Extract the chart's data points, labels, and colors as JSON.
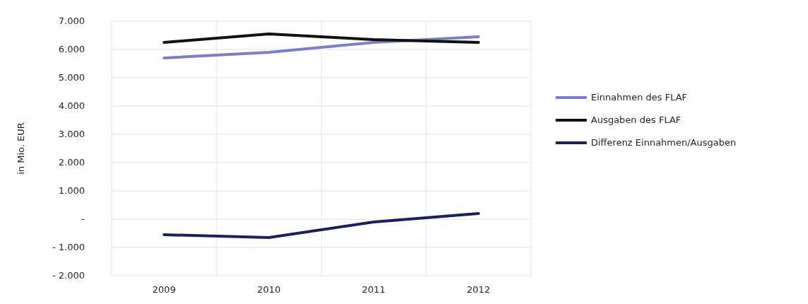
{
  "chart_data": {
    "type": "line",
    "ylabel": "in Mio. EUR",
    "categories": [
      "2009",
      "2010",
      "2011",
      "2012"
    ],
    "series": [
      {
        "name": "Einnahmen des FLAF",
        "color": "#7b7fc4",
        "values": [
          5700,
          5900,
          6250,
          6450
        ]
      },
      {
        "name": "Ausgaben des FLAF",
        "color": "#111111",
        "values": [
          6250,
          6550,
          6350,
          6250
        ]
      },
      {
        "name": "Differenz Einnahmen/Ausgaben",
        "color": "#1c1f5e",
        "values": [
          -550,
          -650,
          -100,
          200
        ]
      }
    ],
    "ylim": [
      -2000,
      7000
    ],
    "yticks": [
      {
        "value": -2000,
        "label": "- 2.000"
      },
      {
        "value": -1000,
        "label": "- 1.000"
      },
      {
        "value": 0,
        "label": "-"
      },
      {
        "value": 1000,
        "label": "1.000"
      },
      {
        "value": 2000,
        "label": "2.000"
      },
      {
        "value": 3000,
        "label": "3.000"
      },
      {
        "value": 4000,
        "label": "4.000"
      },
      {
        "value": 5000,
        "label": "5.000"
      },
      {
        "value": 6000,
        "label": "6.000"
      },
      {
        "value": 7000,
        "label": "7.000"
      }
    ],
    "grid": true,
    "legend": "right",
    "line_style": "solid",
    "marker": "none"
  }
}
